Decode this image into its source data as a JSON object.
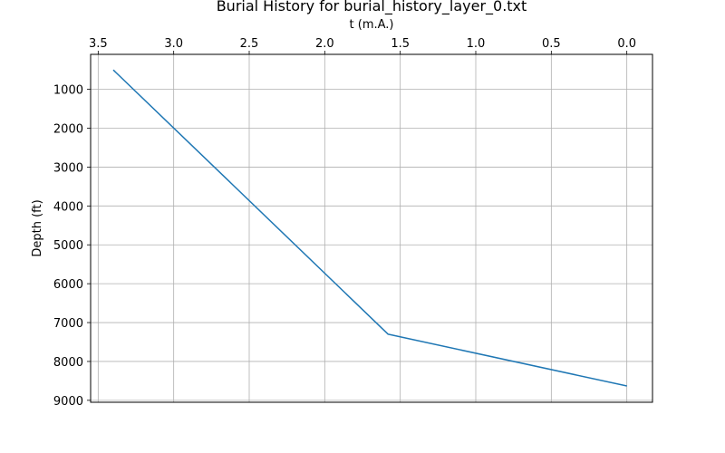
{
  "chart_data": {
    "type": "line",
    "title": "Burial History for burial_history_layer_0.txt",
    "xlabel": "t (m.A.)",
    "ylabel": "Depth (ft)",
    "x_axis_position": "top",
    "x_inverted": true,
    "y_inverted": true,
    "xlim": [
      3.55,
      -0.17
    ],
    "ylim": [
      9050,
      100
    ],
    "xticks": [
      3.5,
      3.0,
      2.5,
      2.0,
      1.5,
      1.0,
      0.5,
      0.0
    ],
    "xtick_labels": [
      "3.5",
      "3.0",
      "2.5",
      "2.0",
      "1.5",
      "1.0",
      "0.5",
      "0.0"
    ],
    "yticks": [
      1000,
      2000,
      3000,
      4000,
      5000,
      6000,
      7000,
      8000,
      9000
    ],
    "ytick_labels": [
      "1000",
      "2000",
      "3000",
      "4000",
      "5000",
      "6000",
      "7000",
      "8000",
      "9000"
    ],
    "grid": true,
    "series": [
      {
        "color": "#1f77b4",
        "x": [
          3.4,
          1.58,
          0.0
        ],
        "y": [
          500,
          7300,
          8630
        ]
      }
    ]
  }
}
